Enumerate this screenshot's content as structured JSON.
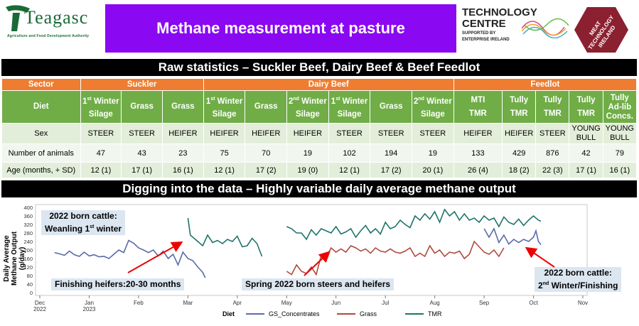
{
  "header": {
    "left_logo_word": "Teagasc",
    "left_logo_tagline": "Agriculture and Food Development Authority",
    "title": "Methane measurement at pasture",
    "tc_line1": "TECHNOLOGY",
    "tc_line2": "CENTRE",
    "tc_line3": "SUPPORTED BY",
    "tc_line4": "ENTERPRISE IRELAND",
    "hex_text1": "MEAT",
    "hex_text2": "TECHNOLOGY",
    "hex_text3": "IRELAND",
    "colors": {
      "title_bg": "#8b08f2",
      "hex": "#8b2030"
    }
  },
  "section1_title": "Raw statistics – Suckler Beef, Dairy Beef & Beef Feedlot",
  "section2_title": "Digging into the data – Highly variable daily average methane output",
  "table": {
    "sector_label": "Sector",
    "sectors": [
      "Suckler",
      "Dairy Beef",
      "Feedlot"
    ],
    "diet_label": "Diet",
    "sex_label": "Sex",
    "num_label": "Number of animals",
    "age_label": "Age (months, + SD)",
    "columns": [
      {
        "diet_pre": "1",
        "diet_sup": "st",
        "diet_post": " Winter",
        "diet2": "Silage",
        "sex": "STEER",
        "n": "47",
        "age": "12 (1)"
      },
      {
        "diet_pre": "Grass",
        "diet_sup": "",
        "diet_post": "",
        "diet2": "",
        "sex": "STEER",
        "n": "43",
        "age": "17 (1)"
      },
      {
        "diet_pre": "Grass",
        "diet_sup": "",
        "diet_post": "",
        "diet2": "",
        "sex": "HEIFER",
        "n": "23",
        "age": "16 (1)"
      },
      {
        "diet_pre": "1",
        "diet_sup": "st",
        "diet_post": " Winter",
        "diet2": "Silage",
        "sex": "HEIFER",
        "n": "75",
        "age": "12 (1)"
      },
      {
        "diet_pre": "Grass",
        "diet_sup": "",
        "diet_post": "",
        "diet2": "",
        "sex": "HEIFER",
        "n": "70",
        "age": "17 (2)"
      },
      {
        "diet_pre": "2",
        "diet_sup": "nd",
        "diet_post": " Winter",
        "diet2": "Silage",
        "sex": "HEIFER",
        "n": "19",
        "age": "19 (0)"
      },
      {
        "diet_pre": "1",
        "diet_sup": "st",
        "diet_post": " Winter",
        "diet2": "Silage",
        "sex": "STEER",
        "n": "102",
        "age": "12 (1)"
      },
      {
        "diet_pre": "Grass",
        "diet_sup": "",
        "diet_post": "",
        "diet2": "",
        "sex": "STEER",
        "n": "194",
        "age": "17 (2)"
      },
      {
        "diet_pre": "2",
        "diet_sup": "nd",
        "diet_post": " Winter",
        "diet2": "Silage",
        "sex": "STEER",
        "n": "19",
        "age": "20 (1)"
      },
      {
        "diet_pre": "MTI",
        "diet_sup": "",
        "diet_post": "",
        "diet2": "TMR",
        "sex": "HEIFER",
        "n": "133",
        "age": "26 (4)"
      },
      {
        "diet_pre": "Tully",
        "diet_sup": "",
        "diet_post": "",
        "diet2": "TMR",
        "sex": "HEIFER",
        "n": "429",
        "age": "18 (2)"
      },
      {
        "diet_pre": "Tully",
        "diet_sup": "",
        "diet_post": "",
        "diet2": "TMR",
        "sex": "STEER",
        "n": "876",
        "age": "22 (3)"
      },
      {
        "diet_pre": "Tully",
        "diet_sup": "",
        "diet_post": "",
        "diet2": "TMR",
        "sex": "YOUNG BULL",
        "n": "42",
        "age": "17 (1)"
      },
      {
        "diet_pre": "Tully",
        "diet_sup": "",
        "diet_post": "",
        "diet2": "Ad-lib Concs.",
        "sex": "YOUNG BULL",
        "n": "79",
        "age": "16 (1)"
      }
    ],
    "colors": {
      "sector": "#ee7d31",
      "diet": "#70ad47",
      "row_a": "#e2eed9",
      "row_b": "#f1f6ee"
    }
  },
  "callouts": {
    "c1_line1": "2022 born cattle:",
    "c1_line2_pre": "Weanling 1",
    "c1_line2_sup": "st",
    "c1_line2_post": " winter",
    "c2": "Finishing heifers:20-30 months",
    "c3": "Spring 2022 born steers and heifers",
    "c4_line1": "2022 born cattle:",
    "c4_line2_pre": "2",
    "c4_line2_sup": "nd",
    "c4_line2_post": " Winter/Finishing"
  },
  "chart_data": {
    "type": "line",
    "ylabel_line1": "Daily Average",
    "ylabel_line2": "Methane Output",
    "ylabel_line3": "(g/day)",
    "ylim": [
      0,
      400
    ],
    "yticks": [
      0,
      40,
      80,
      120,
      160,
      200,
      240,
      280,
      320,
      360,
      400
    ],
    "xticks": [
      "Dec",
      "Jan",
      "Feb",
      "Mar",
      "Apr",
      "May",
      "Jun",
      "Jul",
      "Aug",
      "Sep",
      "Oct",
      "Nov"
    ],
    "xtick_years": [
      "2022",
      "2023",
      "",
      "",
      "",
      "",
      "",
      "",
      "",
      "",
      "",
      ""
    ],
    "legend_title": "Diet",
    "legend_position": "bottom",
    "series": [
      {
        "name": "GS_Concentrates",
        "color": "#5a6aa8",
        "segments": [
          [
            [
              0.3,
              188
            ],
            [
              0.4,
              182
            ],
            [
              0.5,
              175
            ],
            [
              0.6,
              195
            ],
            [
              0.7,
              178
            ],
            [
              0.8,
              170
            ],
            [
              0.9,
              190
            ],
            [
              1.0,
              172
            ],
            [
              1.1,
              178
            ],
            [
              1.2,
              168
            ],
            [
              1.3,
              170
            ],
            [
              1.4,
              160
            ],
            [
              1.5,
              180
            ],
            [
              1.6,
              200
            ],
            [
              1.7,
              188
            ],
            [
              1.8,
              245
            ],
            [
              1.9,
              232
            ],
            [
              2.0,
              210
            ],
            [
              2.1,
              200
            ],
            [
              2.2,
              188
            ],
            [
              2.3,
              200
            ],
            [
              2.4,
              172
            ],
            [
              2.5,
              195
            ],
            [
              2.6,
              160
            ],
            [
              2.7,
              180
            ],
            [
              2.8,
              130
            ],
            [
              2.9,
              190
            ],
            [
              3.0,
              160
            ],
            [
              3.1,
              150
            ],
            [
              3.2,
              120
            ],
            [
              3.3,
              95
            ],
            [
              3.35,
              70
            ]
          ],
          [
            [
              9.0,
              300
            ],
            [
              9.1,
              260
            ],
            [
              9.2,
              300
            ],
            [
              9.3,
              235
            ],
            [
              9.4,
              270
            ],
            [
              9.5,
              228
            ],
            [
              9.6,
              250
            ],
            [
              9.7,
              235
            ],
            [
              9.8,
              250
            ],
            [
              9.9,
              240
            ],
            [
              10.0,
              260
            ],
            [
              10.05,
              290
            ],
            [
              10.1,
              240
            ],
            [
              10.15,
              225
            ]
          ]
        ]
      },
      {
        "name": "Grass",
        "color": "#b04a3e",
        "segments": [
          [
            [
              5.0,
              100
            ],
            [
              5.1,
              85
            ],
            [
              5.2,
              130
            ],
            [
              5.3,
              100
            ],
            [
              5.4,
              90
            ],
            [
              5.5,
              120
            ],
            [
              5.6,
              85
            ],
            [
              5.7,
              175
            ],
            [
              5.8,
              165
            ],
            [
              5.9,
              210
            ],
            [
              6.0,
              190
            ],
            [
              6.1,
              205
            ],
            [
              6.2,
              190
            ],
            [
              6.3,
              220
            ],
            [
              6.4,
              210
            ],
            [
              6.5,
              195
            ],
            [
              6.6,
              205
            ],
            [
              6.7,
              185
            ],
            [
              6.8,
              210
            ],
            [
              6.9,
              195
            ],
            [
              7.0,
              190
            ],
            [
              7.1,
              205
            ],
            [
              7.2,
              190
            ],
            [
              7.3,
              185
            ],
            [
              7.4,
              195
            ],
            [
              7.5,
              210
            ],
            [
              7.6,
              170
            ],
            [
              7.7,
              185
            ],
            [
              7.8,
              170
            ],
            [
              7.9,
              220
            ],
            [
              8.0,
              185
            ],
            [
              8.1,
              200
            ],
            [
              8.2,
              170
            ],
            [
              8.3,
              190
            ],
            [
              8.4,
              185
            ],
            [
              8.5,
              195
            ],
            [
              8.6,
              160
            ],
            [
              8.7,
              180
            ],
            [
              8.8,
              240
            ],
            [
              8.9,
              215
            ],
            [
              9.0,
              190
            ],
            [
              9.1,
              180
            ],
            [
              9.2,
              200
            ],
            [
              9.3,
              170
            ],
            [
              9.4,
              210
            ]
          ]
        ]
      },
      {
        "name": "TMR",
        "color": "#1e7468",
        "segments": [
          [
            [
              3.0,
              350
            ],
            [
              3.05,
              270
            ],
            [
              3.1,
              260
            ],
            [
              3.2,
              240
            ],
            [
              3.3,
              220
            ],
            [
              3.4,
              270
            ],
            [
              3.5,
              235
            ],
            [
              3.6,
              245
            ],
            [
              3.7,
              230
            ],
            [
              3.8,
              250
            ],
            [
              3.9,
              240
            ],
            [
              4.0,
              265
            ],
            [
              4.1,
              215
            ],
            [
              4.2,
              220
            ],
            [
              4.3,
              255
            ],
            [
              4.4,
              230
            ],
            [
              4.5,
              170
            ]
          ],
          [
            [
              5.0,
              310
            ],
            [
              5.1,
              300
            ],
            [
              5.2,
              280
            ],
            [
              5.3,
              280
            ],
            [
              5.4,
              250
            ],
            [
              5.5,
              295
            ],
            [
              5.6,
              270
            ],
            [
              5.7,
              300
            ],
            [
              5.8,
              290
            ],
            [
              5.9,
              280
            ],
            [
              6.0,
              310
            ],
            [
              6.1,
              275
            ],
            [
              6.2,
              285
            ],
            [
              6.3,
              300
            ],
            [
              6.4,
              260
            ],
            [
              6.5,
              290
            ],
            [
              6.6,
              315
            ],
            [
              6.7,
              280
            ],
            [
              6.8,
              300
            ],
            [
              6.9,
              275
            ],
            [
              7.0,
              330
            ],
            [
              7.1,
              300
            ],
            [
              7.2,
              310
            ],
            [
              7.3,
              340
            ],
            [
              7.4,
              320
            ],
            [
              7.5,
              305
            ],
            [
              7.6,
              360
            ],
            [
              7.7,
              340
            ],
            [
              7.8,
              370
            ],
            [
              7.9,
              345
            ],
            [
              8.0,
              380
            ],
            [
              8.1,
              330
            ],
            [
              8.2,
              390
            ],
            [
              8.3,
              360
            ],
            [
              8.4,
              380
            ],
            [
              8.5,
              340
            ],
            [
              8.6,
              370
            ],
            [
              8.7,
              340
            ],
            [
              8.8,
              350
            ],
            [
              8.9,
              330
            ],
            [
              9.0,
              360
            ],
            [
              9.1,
              340
            ],
            [
              9.2,
              350
            ],
            [
              9.3,
              310
            ],
            [
              9.4,
              355
            ],
            [
              9.5,
              330
            ],
            [
              9.6,
              320
            ],
            [
              9.7,
              345
            ],
            [
              9.8,
              315
            ],
            [
              9.9,
              340
            ],
            [
              10.0,
              360
            ],
            [
              10.1,
              340
            ],
            [
              10.15,
              335
            ]
          ]
        ]
      }
    ]
  }
}
